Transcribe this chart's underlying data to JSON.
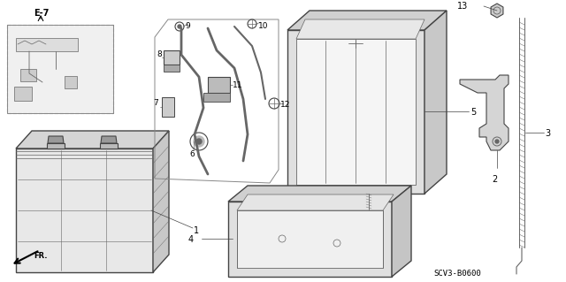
{
  "bg_color": "#ffffff",
  "line_color": "#444444",
  "gray_color": "#aaaaaa",
  "dark_gray": "#666666",
  "light_gray": "#cccccc",
  "fill_gray": "#e8e8e8",
  "scv_label": "SCV3-B0600",
  "figsize": [
    6.4,
    3.19
  ],
  "dpi": 100
}
